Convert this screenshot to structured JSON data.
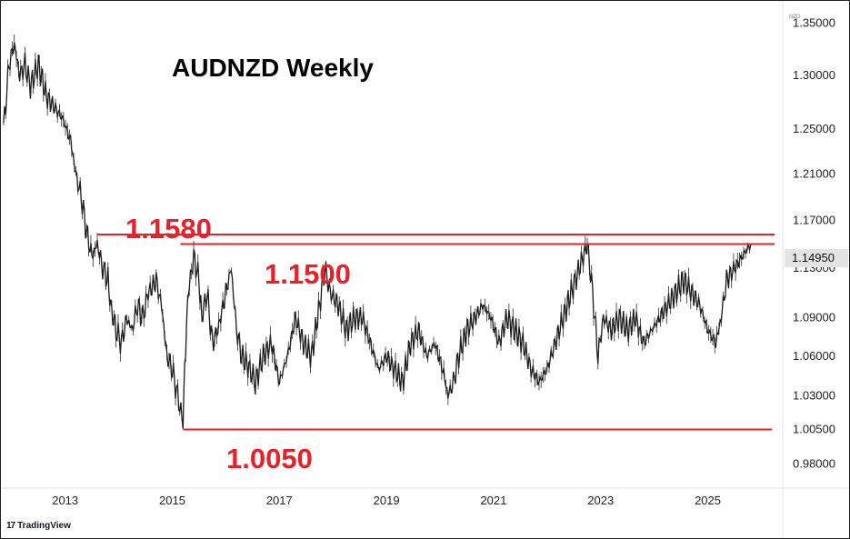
{
  "title": "AUDNZD Weekly",
  "unit_label": "NZD",
  "current_price_label": "1.14950",
  "brand": {
    "icon": "tradingview-logo-icon",
    "icon_text": "17",
    "name": "TradingView"
  },
  "levels": [
    {
      "label": "1.1580",
      "value": 1.158,
      "color": "#e8202a"
    },
    {
      "label": "1.1500",
      "value": 1.15,
      "color": "#e8202a"
    },
    {
      "label": "1.0050",
      "value": 1.005,
      "color": "#e8202a"
    }
  ],
  "chart_data": {
    "type": "line",
    "title": "AUDNZD Weekly",
    "xlabel": "",
    "ylabel": "",
    "yscale": "log",
    "ylim": [
      0.965,
      1.365
    ],
    "xlim": [
      2011.8,
      2026.4
    ],
    "y_ticks": [
      "1.35000",
      "1.30000",
      "1.25000",
      "1.21000",
      "1.17000",
      "1.13000",
      "1.09000",
      "1.06000",
      "1.03000",
      "1.00500",
      "0.98000"
    ],
    "y_tick_values": [
      1.35,
      1.3,
      1.25,
      1.21,
      1.17,
      1.13,
      1.09,
      1.06,
      1.03,
      1.005,
      0.98
    ],
    "x_ticks": [
      "2013",
      "2015",
      "2017",
      "2019",
      "2021",
      "2023",
      "2025"
    ],
    "x_tick_values": [
      2013,
      2015,
      2017,
      2019,
      2021,
      2023,
      2025
    ],
    "horizontal_lines": [
      {
        "value": 1.158,
        "x_start": 2013.6,
        "x_end": 2026.25
      },
      {
        "value": 1.15,
        "x_start": 2015.15,
        "x_end": 2026.25
      },
      {
        "value": 1.005,
        "x_start": 2015.2,
        "x_end": 2026.2
      }
    ],
    "series": [
      {
        "x": [
          2011.85,
          2011.95,
          2012.05,
          2012.15,
          2012.25,
          2012.35,
          2012.5,
          2012.65,
          2012.8,
          2012.95,
          2013.1,
          2013.2,
          2013.3,
          2013.4,
          2013.5,
          2013.6,
          2013.7,
          2013.8,
          2013.85,
          2013.95,
          2014.05,
          2014.15,
          2014.25,
          2014.35,
          2014.45,
          2014.55,
          2014.7,
          2014.8,
          2014.9,
          2015.0,
          2015.1,
          2015.2,
          2015.25,
          2015.3,
          2015.4,
          2015.5,
          2015.55,
          2015.65,
          2015.75,
          2015.85,
          2016.0,
          2016.1,
          2016.2,
          2016.3,
          2016.45,
          2016.55,
          2016.7,
          2016.85,
          2017.0,
          2017.15,
          2017.3,
          2017.45,
          2017.6,
          2017.75,
          2017.85,
          2017.95,
          2018.1,
          2018.25,
          2018.4,
          2018.55,
          2018.7,
          2018.85,
          2019.0,
          2019.15,
          2019.3,
          2019.45,
          2019.6,
          2019.75,
          2019.9,
          2020.05,
          2020.15,
          2020.25,
          2020.35,
          2020.5,
          2020.65,
          2020.8,
          2020.95,
          2021.1,
          2021.25,
          2021.4,
          2021.55,
          2021.7,
          2021.85,
          2022.0,
          2022.15,
          2022.3,
          2022.45,
          2022.6,
          2022.75,
          2022.85,
          2022.95,
          2023.05,
          2023.2,
          2023.35,
          2023.5,
          2023.65,
          2023.8,
          2023.95,
          2024.1,
          2024.25,
          2024.4,
          2024.55,
          2024.7,
          2024.85,
          2025.0,
          2025.15,
          2025.25,
          2025.35,
          2025.5,
          2025.65,
          2025.8
        ],
        "values": [
          1.25,
          1.31,
          1.33,
          1.3,
          1.31,
          1.29,
          1.31,
          1.28,
          1.27,
          1.26,
          1.24,
          1.21,
          1.19,
          1.16,
          1.14,
          1.15,
          1.13,
          1.12,
          1.1,
          1.08,
          1.07,
          1.09,
          1.08,
          1.1,
          1.09,
          1.11,
          1.12,
          1.1,
          1.06,
          1.05,
          1.03,
          1.01,
          1.07,
          1.11,
          1.14,
          1.12,
          1.09,
          1.11,
          1.07,
          1.08,
          1.11,
          1.13,
          1.08,
          1.06,
          1.05,
          1.04,
          1.06,
          1.07,
          1.04,
          1.06,
          1.09,
          1.07,
          1.06,
          1.1,
          1.13,
          1.11,
          1.1,
          1.08,
          1.09,
          1.09,
          1.07,
          1.05,
          1.06,
          1.05,
          1.04,
          1.07,
          1.08,
          1.06,
          1.07,
          1.05,
          1.03,
          1.04,
          1.06,
          1.08,
          1.09,
          1.1,
          1.09,
          1.07,
          1.09,
          1.08,
          1.07,
          1.05,
          1.04,
          1.05,
          1.07,
          1.09,
          1.11,
          1.13,
          1.15,
          1.11,
          1.06,
          1.09,
          1.08,
          1.09,
          1.08,
          1.09,
          1.07,
          1.08,
          1.09,
          1.1,
          1.11,
          1.12,
          1.11,
          1.1,
          1.08,
          1.07,
          1.09,
          1.12,
          1.13,
          1.14,
          1.1495
        ]
      }
    ]
  }
}
